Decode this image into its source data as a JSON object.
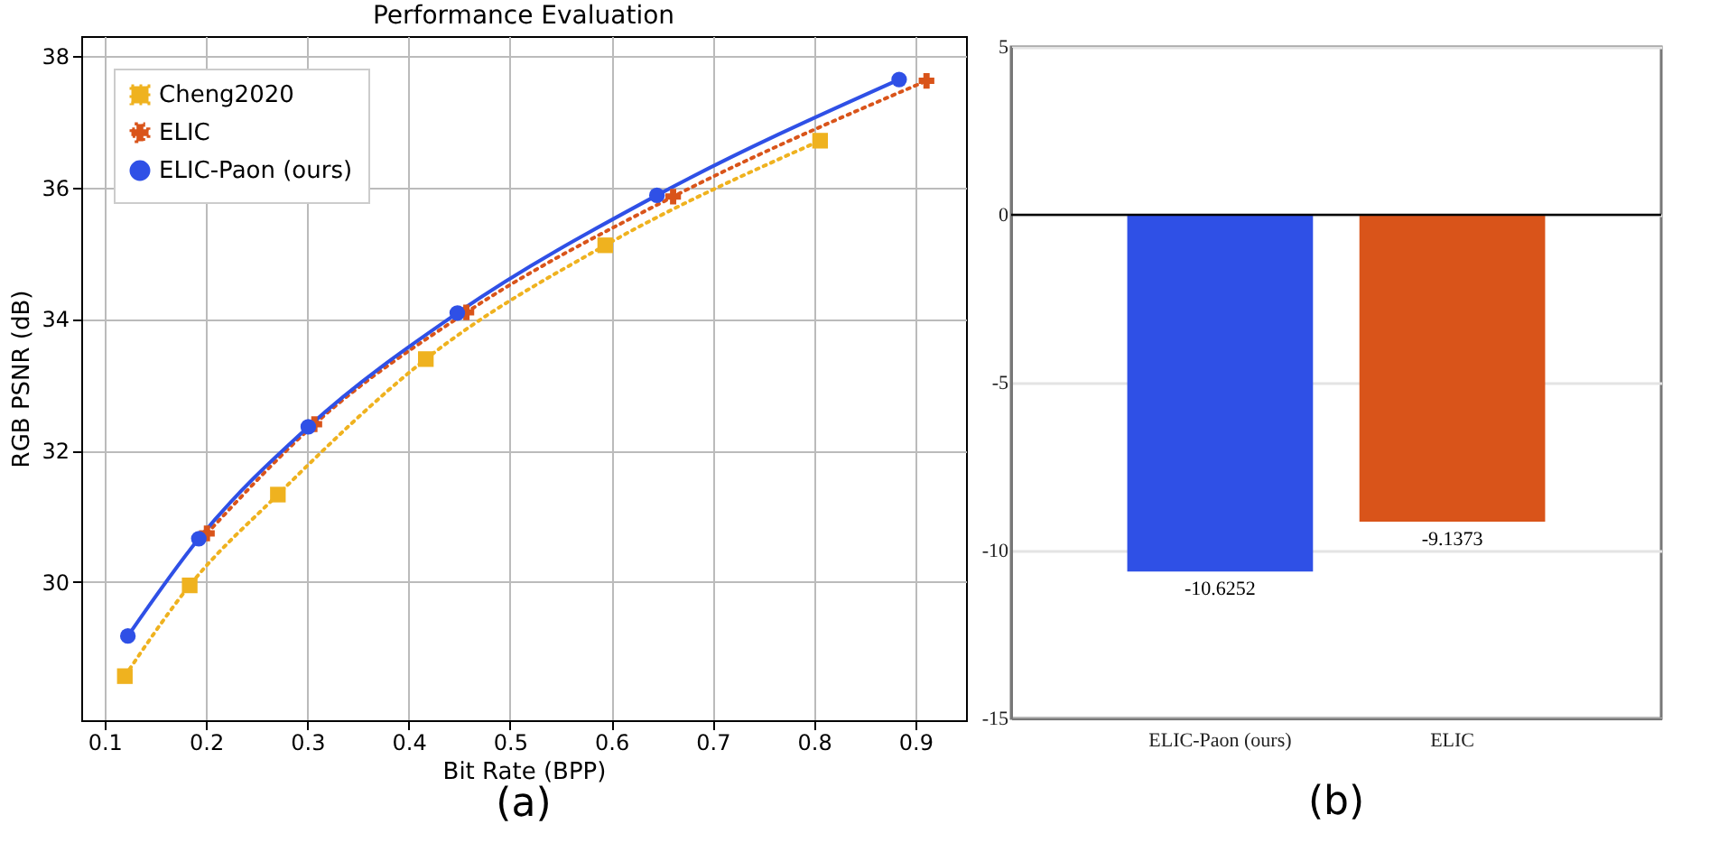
{
  "chart_data": [
    {
      "type": "line",
      "title": "Performance Evaluation",
      "xlabel": "Bit Rate (BPP)",
      "ylabel": "RGB PSNR (dB)",
      "annotations": [
        "(a)"
      ],
      "xlim": [
        0.077,
        0.95
      ],
      "ylim": [
        27.9,
        38.3
      ],
      "xticks": [
        0.1,
        0.2,
        0.3,
        0.4,
        0.5,
        0.6,
        0.7,
        0.8,
        0.9
      ],
      "yticks": [
        30,
        32,
        34,
        36,
        38
      ],
      "grid": true,
      "legend": "top left",
      "series": [
        {
          "name": "Cheng2020",
          "color": "#efb21f",
          "marker": "square",
          "line_style": "dotted",
          "x": [
            0.12,
            0.184,
            0.271,
            0.417,
            0.594,
            0.806
          ],
          "values": [
            28.57,
            29.95,
            31.33,
            33.39,
            35.12,
            36.71
          ]
        },
        {
          "name": "ELIC",
          "color": "#d9541a",
          "marker": "cross",
          "line_style": "dotted",
          "x": [
            0.201,
            0.307,
            0.457,
            0.661,
            0.911
          ],
          "values": [
            30.74,
            32.4,
            34.1,
            35.86,
            37.62
          ]
        },
        {
          "name": "ELIC-Paon (ours)",
          "color": "#2f50e6",
          "marker": "circle",
          "line_style": "solid",
          "x": [
            0.123,
            0.193,
            0.301,
            0.448,
            0.645,
            0.884
          ],
          "values": [
            29.18,
            30.66,
            32.36,
            34.09,
            35.88,
            37.64
          ]
        }
      ]
    },
    {
      "type": "bar",
      "categories": [
        "ELIC-Paon (ours)",
        "ELIC"
      ],
      "values": [
        -10.6252,
        -9.1373
      ],
      "colors": [
        "#2f50e6",
        "#d9541a"
      ],
      "data_labels": true,
      "annotations": [
        "(b)"
      ],
      "ylim": [
        -15,
        5
      ],
      "yticks": [
        -15,
        -10,
        -5,
        0,
        5
      ],
      "grid": "y",
      "ref_lines": [
        {
          "axis": "y",
          "value": 0,
          "color": "#000000"
        }
      ]
    }
  ]
}
